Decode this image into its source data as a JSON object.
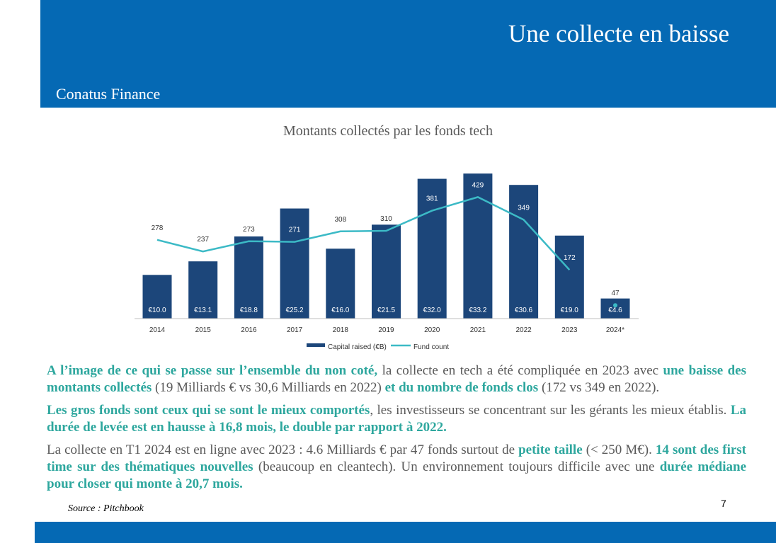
{
  "slide": {
    "title": "Une collecte en baisse",
    "brand": "Conatus Finance",
    "chart_title": "Montants collectés par les fonds tech",
    "source": "Source : Pitchbook",
    "page_number": "7"
  },
  "colors": {
    "header": "#0569b4",
    "bar": "#1c467a",
    "line": "#3cbac6",
    "highlight": "#2ea79e",
    "text": "#595959"
  },
  "paragraphs": [
    {
      "parts": [
        {
          "text": "A l’image de ce qui se passe sur l’ensemble du non coté,",
          "hl": true
        },
        {
          "text": " la collecte en tech a été compliquée en 2023 avec ",
          "hl": false
        },
        {
          "text": "une baisse des montants collectés",
          "hl": true
        },
        {
          "text": " (19 Milliards € vs 30,6 Milliards en 2022) ",
          "hl": false
        },
        {
          "text": "et du nombre de fonds clos",
          "hl": true
        },
        {
          "text": " (172 vs 349 en 2022).",
          "hl": false
        }
      ]
    },
    {
      "parts": [
        {
          "text": "Les gros fonds sont ceux qui se sont le mieux comportés",
          "hl": true
        },
        {
          "text": ", les investisseurs se concentrant sur les gérants les mieux établis. ",
          "hl": false
        },
        {
          "text": "La durée de levée est en hausse à 16,8 mois, le double par rapport à 2022.",
          "hl": true
        }
      ]
    },
    {
      "parts": [
        {
          "text": "La collecte en T1 2024 est en ligne avec 2023 : 4.6 Milliards € par 47 fonds surtout de ",
          "hl": false
        },
        {
          "text": "petite taille",
          "hl": true
        },
        {
          "text": " (< 250 M€). ",
          "hl": false
        },
        {
          "text": "14 sont des first time sur des thématiques nouvelles",
          "hl": true
        },
        {
          "text": " (beaucoup en cleantech). Un environnement toujours difficile avec une ",
          "hl": false
        },
        {
          "text": "durée médiane pour closer qui monte à 20,7 mois.",
          "hl": true
        }
      ]
    }
  ],
  "chart_data": {
    "type": "bar",
    "categories": [
      "2014",
      "2015",
      "2016",
      "2017",
      "2018",
      "2019",
      "2020",
      "2021",
      "2022",
      "2023",
      "2024*"
    ],
    "series": [
      {
        "name": "Capital raised (€B)",
        "type": "bar",
        "values": [
          10.0,
          13.1,
          18.8,
          25.2,
          16.0,
          21.5,
          32.0,
          33.2,
          30.6,
          19.0,
          4.6
        ],
        "labels": [
          "€10.0",
          "€13.1",
          "€18.8",
          "€25.2",
          "€16.0",
          "€21.5",
          "€32.0",
          "€33.2",
          "€30.6",
          "€19.0",
          "€4.6"
        ]
      },
      {
        "name": "Fund count",
        "type": "line",
        "values": [
          278,
          237,
          273,
          271,
          308,
          310,
          381,
          429,
          349,
          172,
          47
        ]
      }
    ],
    "title": "Montants collectés par les fonds tech",
    "legend": "bottom"
  }
}
